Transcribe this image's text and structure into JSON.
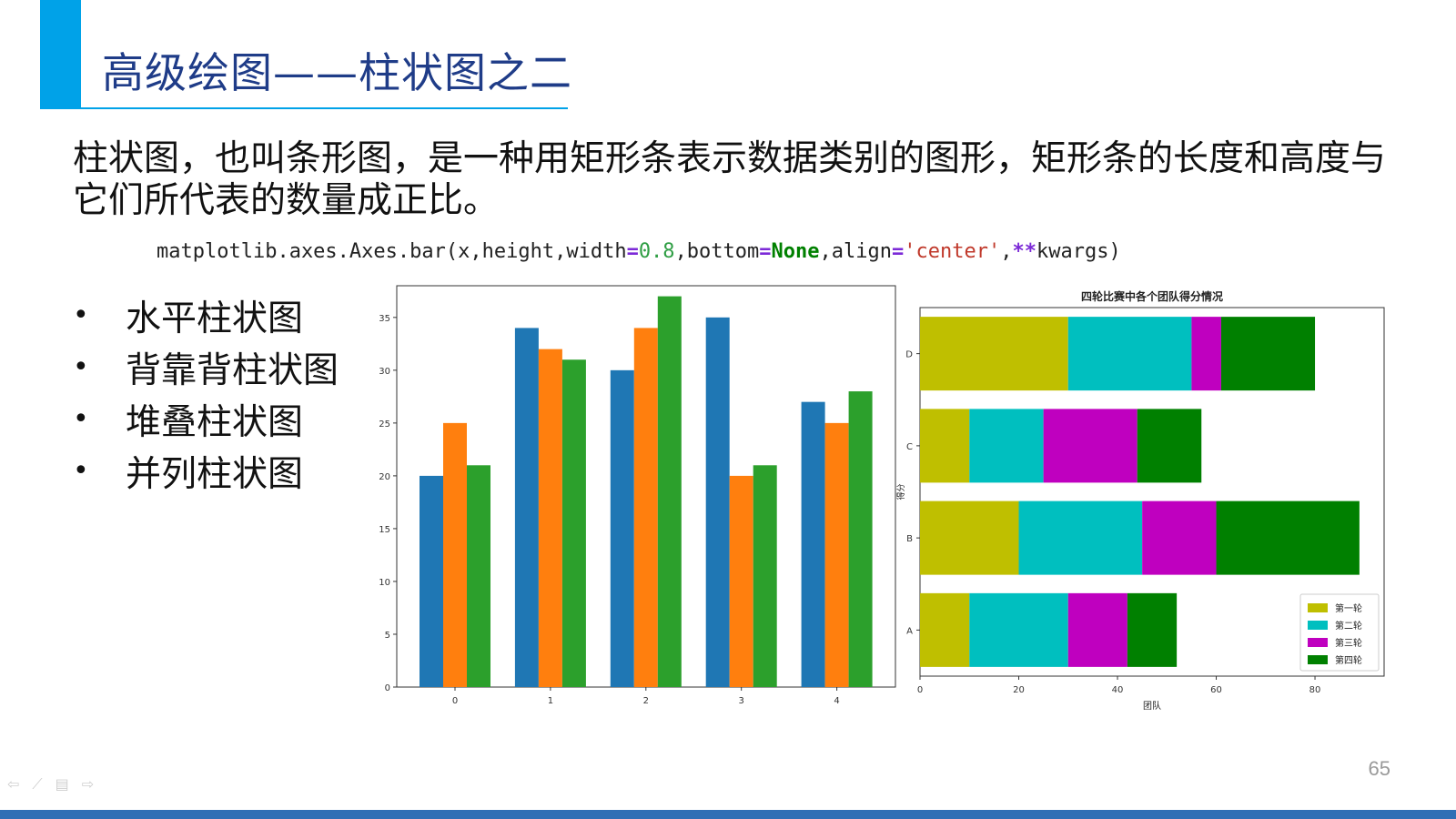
{
  "slide": {
    "title": "高级绘图——柱状图之二",
    "intro": "柱状图，也叫条形图，是一种用矩形条表示数据类别的图形，矩形条的长度和高度与它们所代表的数量成正比。",
    "code": {
      "prefix": "matplotlib.axes.Axes.bar(x,height,width",
      "eq1": "=",
      "width_val": "0.8",
      "mid1": ",bottom",
      "eq2": "=",
      "bottom_val": "None",
      "mid2": ",align",
      "eq3": "=",
      "align_val": "'center'",
      "comma": ",",
      "stars": "**",
      "suffix": "kwargs)"
    },
    "bullets": [
      "水平柱状图",
      "背靠背柱状图",
      "堆叠柱状图",
      "并列柱状图"
    ],
    "bullet_symbol": "•",
    "page_number": "65",
    "nav_icons": [
      "back-arrow-icon",
      "pen-icon",
      "menu-icon",
      "forward-arrow-icon"
    ],
    "nav_glyphs": [
      "⇦",
      "⟋",
      "▤",
      "⇨"
    ]
  },
  "colors": {
    "accent": "#00a2e8",
    "title": "#1f3c88",
    "bottom_bar": "#2f6fb5"
  },
  "chart_data": [
    {
      "type": "bar",
      "title": "",
      "xlabel": "",
      "ylabel": "",
      "categories": [
        "0",
        "1",
        "2",
        "3",
        "4"
      ],
      "ylim": [
        0,
        38
      ],
      "yticks": [
        0,
        5,
        10,
        15,
        20,
        25,
        30,
        35
      ],
      "grid": false,
      "series": [
        {
          "values": [
            20,
            34,
            30,
            35,
            27
          ],
          "color": "#1f77b4"
        },
        {
          "values": [
            25,
            32,
            34,
            20,
            25
          ],
          "color": "#ff7f0e"
        },
        {
          "values": [
            21,
            31,
            37,
            21,
            28
          ],
          "color": "#2ca02c"
        }
      ]
    },
    {
      "type": "bar",
      "orientation": "horizontal",
      "stacked": true,
      "title": "四轮比赛中各个团队得分情况",
      "xlabel": "团队",
      "ylabel": "得分",
      "categories": [
        "A",
        "B",
        "C",
        "D"
      ],
      "xlim": [
        0,
        94
      ],
      "xticks": [
        0,
        20,
        40,
        60,
        80
      ],
      "legend_position": "lower-right",
      "grid": false,
      "series": [
        {
          "name": "第一轮",
          "values": [
            10,
            20,
            10,
            30
          ],
          "color": "#bfbf00"
        },
        {
          "name": "第二轮",
          "values": [
            20,
            25,
            15,
            25
          ],
          "color": "#00bfbf"
        },
        {
          "name": "第三轮",
          "values": [
            12,
            15,
            19,
            6
          ],
          "color": "#bf00bf"
        },
        {
          "name": "第四轮",
          "values": [
            10,
            29,
            13,
            19
          ],
          "color": "#008000"
        }
      ]
    }
  ]
}
